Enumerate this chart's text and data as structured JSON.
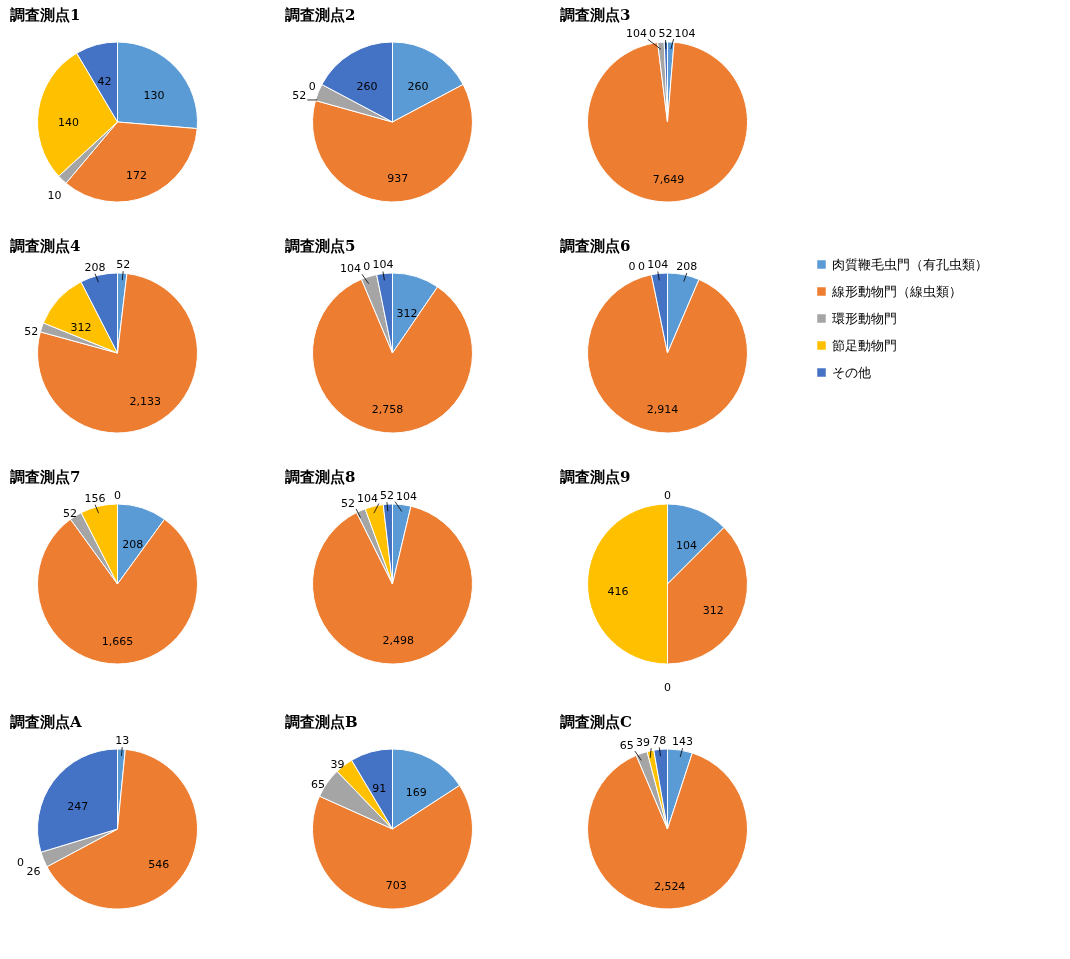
{
  "chart_data": [
    {
      "type": "pie",
      "title": "調査測点1",
      "categories": [
        null,
        null,
        null,
        null,
        null
      ],
      "values": [
        130,
        172,
        10,
        140,
        42
      ],
      "value_labels": [
        "130",
        "172",
        "10",
        "140",
        "42"
      ],
      "colors": [
        "#5b9bd5",
        "#ed7d31",
        "#a5a5a5",
        "#ffc000",
        "#4472c4"
      ]
    },
    {
      "type": "pie",
      "title": "調査測点2",
      "categories": [
        null,
        null,
        null,
        null,
        null
      ],
      "values": [
        260,
        937,
        52,
        0,
        260
      ],
      "value_labels": [
        "260",
        "937",
        "52",
        "0",
        "260"
      ],
      "colors": [
        "#5b9bd5",
        "#ed7d31",
        "#a5a5a5",
        "#ffc000",
        "#4472c4"
      ]
    },
    {
      "type": "pie",
      "title": "調査測点3",
      "categories": [
        null,
        null,
        null,
        null,
        null
      ],
      "values": [
        104,
        7649,
        104,
        0,
        52
      ],
      "value_labels": [
        "104",
        "7,649",
        "104",
        "0",
        "52"
      ],
      "colors": [
        "#5b9bd5",
        "#ed7d31",
        "#a5a5a5",
        "#ffc000",
        "#4472c4"
      ]
    },
    {
      "type": "pie",
      "title": "調査測点4",
      "categories": [
        null,
        null,
        null,
        null,
        null
      ],
      "values": [
        52,
        2133,
        52,
        312,
        208
      ],
      "value_labels": [
        "52",
        "2,133",
        "52",
        "312",
        "208"
      ],
      "colors": [
        "#5b9bd5",
        "#ed7d31",
        "#a5a5a5",
        "#ffc000",
        "#4472c4"
      ]
    },
    {
      "type": "pie",
      "title": "調査測点5",
      "categories": [
        null,
        null,
        null,
        null,
        null
      ],
      "values": [
        312,
        2758,
        104,
        0,
        104
      ],
      "value_labels": [
        "312",
        "2,758",
        "104",
        "0",
        "104"
      ],
      "colors": [
        "#5b9bd5",
        "#ed7d31",
        "#a5a5a5",
        "#ffc000",
        "#4472c4"
      ]
    },
    {
      "type": "pie",
      "title": "調査測点6",
      "categories": [
        "肉質鞭毛虫門（有孔虫類）",
        "線形動物門（線虫類）",
        "環形動物門",
        "節足動物門",
        "その他"
      ],
      "legend": "right",
      "values": [
        208,
        2914,
        0,
        0,
        104
      ],
      "value_labels": [
        "208",
        "2,914",
        "0",
        "0",
        "104"
      ],
      "colors": [
        "#5b9bd5",
        "#ed7d31",
        "#a5a5a5",
        "#ffc000",
        "#4472c4"
      ]
    },
    {
      "type": "pie",
      "title": "調査測点7",
      "categories": [
        null,
        null,
        null,
        null,
        null
      ],
      "values": [
        208,
        1665,
        52,
        156,
        0
      ],
      "value_labels": [
        "208",
        "1,665",
        "52",
        "156",
        "0"
      ],
      "colors": [
        "#5b9bd5",
        "#ed7d31",
        "#a5a5a5",
        "#ffc000",
        "#4472c4"
      ]
    },
    {
      "type": "pie",
      "title": "調査測点8",
      "categories": [
        null,
        null,
        null,
        null,
        null
      ],
      "values": [
        104,
        2498,
        52,
        104,
        52
      ],
      "value_labels": [
        "104",
        "2,498",
        "52",
        "104",
        "52"
      ],
      "colors": [
        "#5b9bd5",
        "#ed7d31",
        "#a5a5a5",
        "#ffc000",
        "#4472c4"
      ]
    },
    {
      "type": "pie",
      "title": "調査測点9",
      "categories": [
        null,
        null,
        null,
        null,
        null
      ],
      "values": [
        104,
        312,
        0,
        416,
        0
      ],
      "value_labels": [
        "104",
        "312",
        "0",
        "416",
        "0"
      ],
      "colors": [
        "#5b9bd5",
        "#ed7d31",
        "#a5a5a5",
        "#ffc000",
        "#4472c4"
      ]
    },
    {
      "type": "pie",
      "title": "調査測点A",
      "categories": [
        null,
        null,
        null,
        null,
        null
      ],
      "values": [
        13,
        546,
        26,
        0,
        247
      ],
      "value_labels": [
        "13",
        "546",
        "26",
        "0",
        "247"
      ],
      "colors": [
        "#5b9bd5",
        "#ed7d31",
        "#a5a5a5",
        "#ffc000",
        "#4472c4"
      ]
    },
    {
      "type": "pie",
      "title": "調査測点B",
      "categories": [
        null,
        null,
        null,
        null,
        null
      ],
      "values": [
        169,
        703,
        65,
        39,
        91
      ],
      "value_labels": [
        "169",
        "703",
        "65",
        "39",
        "91"
      ],
      "colors": [
        "#5b9bd5",
        "#ed7d31",
        "#a5a5a5",
        "#ffc000",
        "#4472c4"
      ]
    },
    {
      "type": "pie",
      "title": "調査測点C",
      "categories": [
        null,
        null,
        null,
        null,
        null
      ],
      "values": [
        143,
        2524,
        65,
        39,
        78
      ],
      "value_labels": [
        "143",
        "2,524",
        "65",
        "39",
        "78"
      ],
      "colors": [
        "#5b9bd5",
        "#ed7d31",
        "#a5a5a5",
        "#ffc000",
        "#4472c4"
      ]
    }
  ]
}
